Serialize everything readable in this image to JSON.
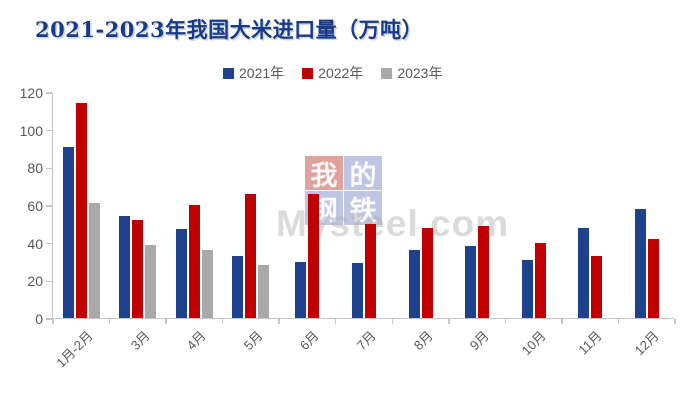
{
  "title": "2021-2023年我国大米进口量（万吨）",
  "watermark": {
    "chars": [
      "我",
      "的",
      "钢",
      "铁"
    ],
    "site_text": "Mysteel.com"
  },
  "colors": {
    "title": "#1B3A85",
    "axis_text": "#595959",
    "axis_line": "#C6C6C6",
    "series_2021": "#1E418D",
    "series_2022": "#C00000",
    "series_2023": "#A9A9A9"
  },
  "chart_data": {
    "type": "bar",
    "title": "2021-2023年我国大米进口量（万吨）",
    "categories": [
      "1月-2月",
      "3月",
      "4月",
      "5月",
      "6月",
      "7月",
      "8月",
      "9月",
      "10月",
      "11月",
      "12月"
    ],
    "series": [
      {
        "name": "2021年",
        "color": "#1E418D",
        "values": [
          91,
          54,
          47,
          33,
          30,
          29,
          36,
          38,
          31,
          48,
          58
        ]
      },
      {
        "name": "2022年",
        "color": "#C00000",
        "values": [
          114,
          52,
          60,
          66,
          66,
          50,
          48,
          49,
          40,
          33,
          42
        ]
      },
      {
        "name": "2023年",
        "color": "#A9A9A9",
        "values": [
          61,
          39,
          36,
          28,
          null,
          null,
          null,
          null,
          null,
          null,
          null
        ]
      }
    ],
    "xlabel": "",
    "ylabel": "",
    "unit": "万吨",
    "ylim": [
      0,
      120
    ],
    "yticks": [
      0,
      20,
      40,
      60,
      80,
      100,
      120
    ],
    "legend_position": "top",
    "grid": false
  }
}
